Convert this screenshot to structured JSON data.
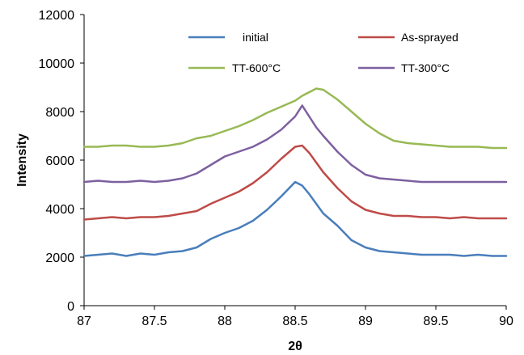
{
  "chart_data": {
    "type": "line",
    "xlabel": "2θ",
    "ylabel": "Intensity",
    "xlim": [
      87,
      90
    ],
    "ylim": [
      0,
      12000
    ],
    "x_ticks": [
      "87",
      "87.5",
      "88",
      "88.5",
      "89",
      "89.5",
      "90"
    ],
    "y_ticks": [
      "0",
      "2000",
      "4000",
      "6000",
      "8000",
      "10000",
      "12000"
    ],
    "grid": false,
    "legend": "top, inside plot, two columns",
    "x": [
      87.0,
      87.1,
      87.2,
      87.3,
      87.4,
      87.5,
      87.6,
      87.7,
      87.8,
      87.9,
      88.0,
      88.1,
      88.2,
      88.3,
      88.4,
      88.5,
      88.55,
      88.6,
      88.65,
      88.7,
      88.8,
      88.9,
      89.0,
      89.1,
      89.2,
      89.3,
      89.4,
      89.5,
      89.6,
      89.7,
      89.8,
      89.9,
      90.0
    ],
    "series": [
      {
        "name": "initial",
        "color": "#4a7ebb",
        "values": [
          2050,
          2100,
          2150,
          2050,
          2150,
          2100,
          2200,
          2250,
          2400,
          2750,
          3000,
          3200,
          3500,
          3950,
          4500,
          5100,
          4950,
          4600,
          4200,
          3800,
          3300,
          2700,
          2400,
          2250,
          2200,
          2150,
          2100,
          2100,
          2100,
          2050,
          2100,
          2050,
          2050
        ]
      },
      {
        "name": "As-sprayed",
        "color": "#be4b48",
        "values": [
          3550,
          3600,
          3650,
          3600,
          3650,
          3650,
          3700,
          3800,
          3900,
          4200,
          4450,
          4700,
          5050,
          5500,
          6050,
          6550,
          6600,
          6300,
          5900,
          5500,
          4850,
          4300,
          3950,
          3800,
          3700,
          3700,
          3650,
          3650,
          3600,
          3650,
          3600,
          3600,
          3600
        ]
      },
      {
        "name": "TT-600°C",
        "color": "#98b954",
        "values": [
          6550,
          6550,
          6600,
          6600,
          6550,
          6550,
          6600,
          6700,
          6900,
          7000,
          7200,
          7400,
          7650,
          7950,
          8200,
          8450,
          8650,
          8800,
          8950,
          8900,
          8500,
          8000,
          7500,
          7100,
          6800,
          6700,
          6650,
          6600,
          6550,
          6550,
          6550,
          6500,
          6500
        ]
      },
      {
        "name": "TT-300°C",
        "color": "#7d60a0",
        "values": [
          5100,
          5150,
          5100,
          5100,
          5150,
          5100,
          5150,
          5250,
          5450,
          5800,
          6150,
          6350,
          6550,
          6850,
          7250,
          7800,
          8250,
          7800,
          7350,
          7000,
          6350,
          5800,
          5400,
          5250,
          5200,
          5150,
          5100,
          5100,
          5100,
          5100,
          5100,
          5100,
          5100
        ]
      }
    ]
  }
}
